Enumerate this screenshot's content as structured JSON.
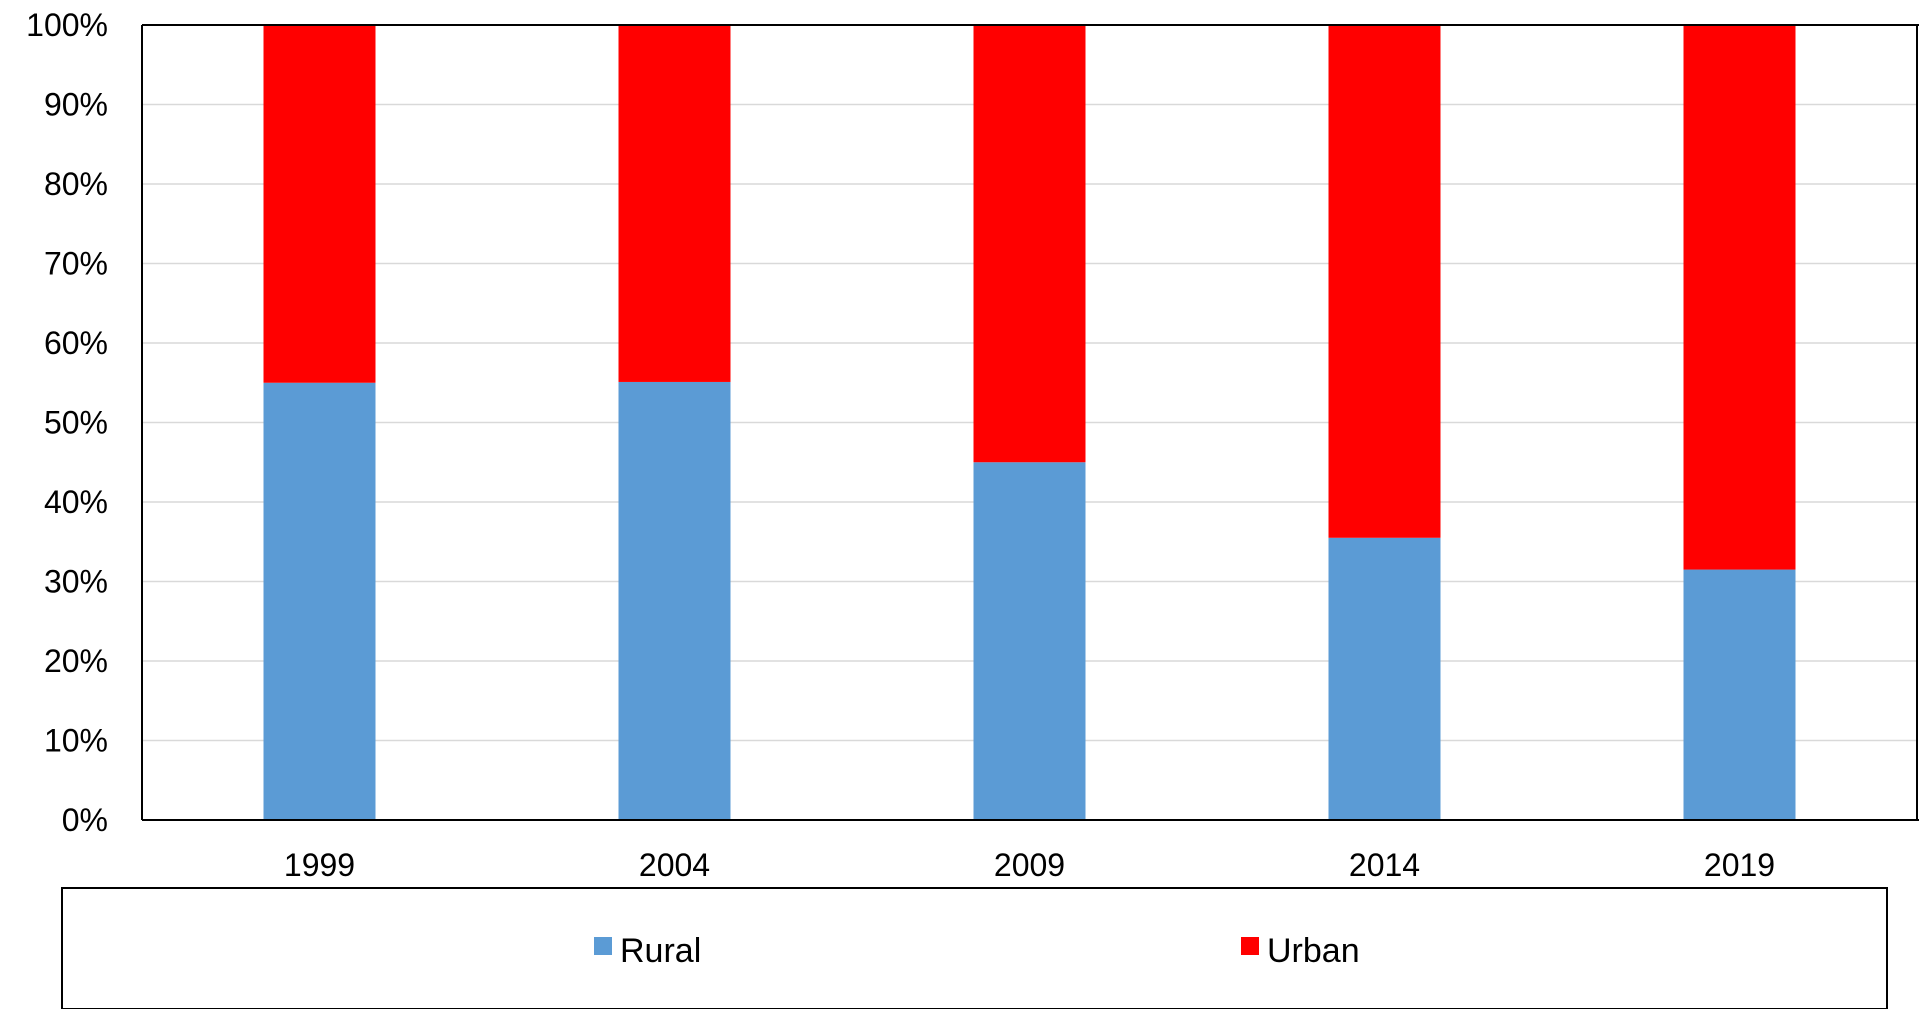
{
  "chart_data": {
    "type": "bar",
    "stacked": true,
    "categories": [
      "1999",
      "2004",
      "2009",
      "2014",
      "2019"
    ],
    "series": [
      {
        "name": "Rural",
        "values": [
          55,
          55.1,
          45,
          35.5,
          31.5
        ],
        "color": "#5B9BD5"
      },
      {
        "name": "Urban",
        "values": [
          45,
          44.9,
          55,
          64.5,
          68.5
        ],
        "color": "#FF0000"
      }
    ],
    "ylim": [
      0,
      100
    ],
    "yticks": [
      "0%",
      "10%",
      "20%",
      "30%",
      "40%",
      "50%",
      "60%",
      "70%",
      "80%",
      "90%",
      "100%"
    ],
    "grid": true,
    "legend": "bottom",
    "title": "",
    "xlabel": "",
    "ylabel": ""
  }
}
